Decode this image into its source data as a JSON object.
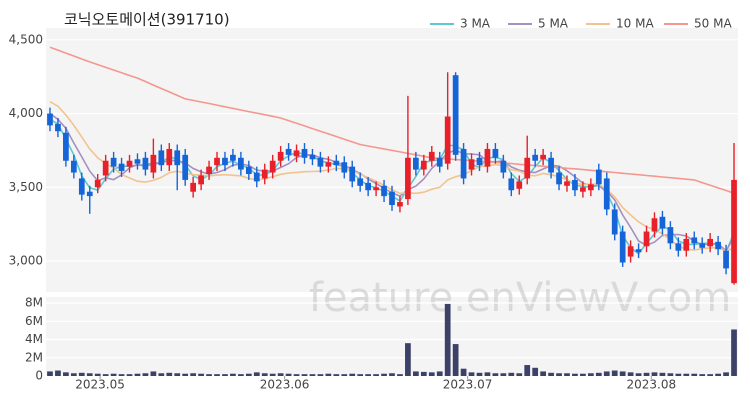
{
  "chart_data": [
    {
      "type": "candlestick",
      "title": "코닉오토메이션(391710)",
      "watermark": "feature.enViewV.com",
      "xlim": [
        -0.5,
        86.5
      ],
      "ylim": [
        2790,
        4580
      ],
      "yticks": [
        {
          "value": 3000,
          "label": "3,000"
        },
        {
          "value": 3500,
          "label": "3,500"
        },
        {
          "value": 4000,
          "label": "4,000"
        },
        {
          "value": 4500,
          "label": "4,500"
        }
      ],
      "grid": true,
      "legend": "top-right",
      "up_color": "#e8202a",
      "down_color": "#1565d8",
      "open": [
        4000,
        3930,
        3870,
        3680,
        3560,
        3470,
        3500,
        3580,
        3700,
        3660,
        3640,
        3690,
        3700,
        3600,
        3750,
        3650,
        3750,
        3720,
        3470,
        3520,
        3590,
        3650,
        3700,
        3720,
        3700,
        3640,
        3600,
        3560,
        3600,
        3680,
        3760,
        3710,
        3760,
        3720,
        3700,
        3640,
        3680,
        3670,
        3640,
        3560,
        3530,
        3480,
        3510,
        3470,
        3370,
        3420,
        3700,
        3620,
        3680,
        3700,
        3660,
        4260,
        3760,
        3620,
        3700,
        3640,
        3760,
        3680,
        3560,
        3490,
        3560,
        3720,
        3690,
        3700,
        3600,
        3510,
        3550,
        3470,
        3480,
        3620,
        3560,
        3350,
        3200,
        3030,
        3080,
        3100,
        3200,
        3300,
        3230,
        3120,
        3070,
        3160,
        3120,
        3100,
        3130,
        3070,
        2850
      ],
      "high": [
        4040,
        3970,
        3910,
        3720,
        3600,
        3510,
        3590,
        3720,
        3740,
        3700,
        3720,
        3730,
        3740,
        3830,
        3790,
        3800,
        3790,
        3760,
        3570,
        3620,
        3680,
        3740,
        3740,
        3760,
        3740,
        3680,
        3640,
        3660,
        3720,
        3780,
        3800,
        3790,
        3800,
        3760,
        3740,
        3710,
        3720,
        3710,
        3680,
        3600,
        3570,
        3540,
        3550,
        3510,
        3440,
        4120,
        3740,
        3720,
        3780,
        3740,
        4280,
        4280,
        3800,
        3730,
        3740,
        3800,
        3800,
        3720,
        3600,
        3580,
        3850,
        3760,
        3760,
        3740,
        3640,
        3580,
        3590,
        3540,
        3560,
        3660,
        3600,
        3390,
        3240,
        3140,
        3120,
        3240,
        3330,
        3340,
        3270,
        3160,
        3190,
        3200,
        3160,
        3190,
        3170,
        3110,
        3800
      ],
      "low": [
        3880,
        3840,
        3640,
        3560,
        3410,
        3320,
        3460,
        3540,
        3600,
        3570,
        3600,
        3620,
        3580,
        3560,
        3610,
        3610,
        3480,
        3510,
        3430,
        3480,
        3550,
        3610,
        3610,
        3640,
        3580,
        3550,
        3500,
        3520,
        3560,
        3640,
        3680,
        3670,
        3660,
        3650,
        3600,
        3600,
        3610,
        3560,
        3500,
        3470,
        3440,
        3440,
        3400,
        3340,
        3330,
        3380,
        3580,
        3580,
        3640,
        3600,
        3620,
        3680,
        3520,
        3580,
        3610,
        3600,
        3660,
        3560,
        3440,
        3450,
        3520,
        3640,
        3650,
        3560,
        3480,
        3470,
        3440,
        3430,
        3440,
        3480,
        3310,
        3140,
        2960,
        2990,
        3020,
        3060,
        3160,
        3180,
        3080,
        3030,
        3030,
        3080,
        3050,
        3060,
        3040,
        2910,
        2840
      ],
      "close": [
        3920,
        3880,
        3680,
        3600,
        3450,
        3440,
        3550,
        3680,
        3640,
        3610,
        3680,
        3660,
        3620,
        3720,
        3650,
        3760,
        3650,
        3550,
        3530,
        3580,
        3640,
        3700,
        3650,
        3680,
        3620,
        3590,
        3540,
        3620,
        3680,
        3740,
        3720,
        3750,
        3700,
        3690,
        3640,
        3670,
        3650,
        3600,
        3540,
        3510,
        3480,
        3500,
        3440,
        3380,
        3400,
        3700,
        3620,
        3680,
        3740,
        3640,
        3980,
        3720,
        3560,
        3690,
        3650,
        3760,
        3700,
        3600,
        3480,
        3540,
        3700,
        3680,
        3720,
        3600,
        3520,
        3540,
        3480,
        3500,
        3520,
        3520,
        3350,
        3180,
        2990,
        3100,
        3060,
        3200,
        3290,
        3220,
        3120,
        3070,
        3150,
        3120,
        3090,
        3150,
        3080,
        2950,
        3550
      ],
      "series": [
        {
          "name": "3 MA",
          "color": "#5ec8d0",
          "values": [
            3960,
            3930,
            3827,
            3720,
            3577,
            3497,
            3480,
            3557,
            3623,
            3643,
            3643,
            3650,
            3653,
            3667,
            3663,
            3710,
            3687,
            3653,
            3577,
            3553,
            3583,
            3640,
            3663,
            3677,
            3650,
            3630,
            3583,
            3583,
            3613,
            3680,
            3713,
            3737,
            3723,
            3713,
            3677,
            3667,
            3653,
            3640,
            3597,
            3550,
            3510,
            3497,
            3473,
            3440,
            3407,
            3493,
            3573,
            3667,
            3680,
            3687,
            3787,
            3780,
            3753,
            3657,
            3633,
            3700,
            3703,
            3687,
            3593,
            3540,
            3573,
            3640,
            3700,
            3667,
            3613,
            3553,
            3513,
            3507,
            3500,
            3513,
            3463,
            3350,
            3173,
            3090,
            3050,
            3120,
            3183,
            3237,
            3210,
            3137,
            3113,
            3113,
            3120,
            3120,
            3107,
            3060,
            3193
          ]
        },
        {
          "name": "5 MA",
          "color": "#a78fbf",
          "values": [
            4000,
            3960,
            3900,
            3800,
            3706,
            3610,
            3544,
            3564,
            3552,
            3584,
            3632,
            3654,
            3642,
            3658,
            3666,
            3682,
            3680,
            3666,
            3628,
            3604,
            3590,
            3600,
            3620,
            3650,
            3658,
            3648,
            3616,
            3610,
            3610,
            3634,
            3660,
            3702,
            3718,
            3720,
            3700,
            3690,
            3670,
            3650,
            3620,
            3594,
            3556,
            3526,
            3494,
            3462,
            3440,
            3484,
            3508,
            3556,
            3628,
            3676,
            3732,
            3752,
            3728,
            3726,
            3720,
            3676,
            3672,
            3680,
            3638,
            3616,
            3604,
            3600,
            3624,
            3648,
            3644,
            3612,
            3572,
            3528,
            3512,
            3512,
            3474,
            3414,
            3312,
            3228,
            3136,
            3106,
            3128,
            3174,
            3178,
            3180,
            3170,
            3136,
            3110,
            3116,
            3118,
            3068,
            3164
          ]
        },
        {
          "name": "10 MA",
          "color": "#f2c38e",
          "values": [
            4080,
            4050,
            3990,
            3920,
            3840,
            3760,
            3700,
            3660,
            3630,
            3587,
            3563,
            3541,
            3535,
            3547,
            3567,
            3599,
            3609,
            3596,
            3585,
            3582,
            3578,
            3582,
            3585,
            3581,
            3578,
            3561,
            3550,
            3557,
            3572,
            3588,
            3596,
            3601,
            3606,
            3607,
            3609,
            3617,
            3628,
            3626,
            3612,
            3589,
            3565,
            3540,
            3514,
            3483,
            3459,
            3462,
            3459,
            3467,
            3487,
            3500,
            3550,
            3572,
            3584,
            3615,
            3640,
            3646,
            3654,
            3646,
            3620,
            3610,
            3582,
            3578,
            3594,
            3585,
            3572,
            3550,
            3528,
            3518,
            3522,
            3520,
            3485,
            3435,
            3362,
            3312,
            3266,
            3232,
            3213,
            3185,
            3145,
            3100,
            3080,
            3074,
            3084,
            3089,
            3091,
            3066,
            3092
          ]
        },
        {
          "name": "50 MA",
          "color": "#f4978e",
          "values": [
            4450,
            4430,
            4410,
            4390,
            4370,
            4350,
            4332,
            4313,
            4295,
            4277,
            4258,
            4240,
            4217,
            4193,
            4170,
            4147,
            4123,
            4100,
            4089,
            4078,
            4068,
            4057,
            4046,
            4035,
            4024,
            4013,
            4003,
            3992,
            3981,
            3970,
            3952,
            3934,
            3916,
            3898,
            3880,
            3862,
            3844,
            3826,
            3808,
            3790,
            3780,
            3770,
            3760,
            3750,
            3740,
            3730,
            3720,
            3710,
            3700,
            3696,
            3692,
            3688,
            3684,
            3681,
            3677,
            3673,
            3669,
            3665,
            3661,
            3656,
            3652,
            3647,
            3643,
            3638,
            3634,
            3629,
            3625,
            3620,
            3615,
            3610,
            3605,
            3600,
            3595,
            3590,
            3585,
            3580,
            3575,
            3570,
            3565,
            3560,
            3555,
            3550,
            3532,
            3514,
            3496,
            3478,
            3460
          ]
        }
      ]
    },
    {
      "type": "bar",
      "color": "#3c4168",
      "xlim": [
        -0.5,
        86.5
      ],
      "ylim": [
        0,
        8660000
      ],
      "yticks": [
        0,
        {
          "value": 2000000,
          "label": "2M"
        },
        {
          "value": 4000000,
          "label": "4M"
        },
        {
          "value": 6000000,
          "label": "6M"
        },
        {
          "value": 8000000,
          "label": "8M"
        }
      ],
      "xticks": [
        {
          "value": 6.3,
          "label": "2023.05"
        },
        {
          "value": 29.5,
          "label": "2023.06"
        },
        {
          "value": 52.5,
          "label": "2023.07"
        },
        {
          "value": 75.6,
          "label": "2023.08"
        }
      ],
      "values": [
        500000,
        600000,
        400000,
        300000,
        350000,
        300000,
        250000,
        200000,
        250000,
        200000,
        200000,
        250000,
        300000,
        500000,
        300000,
        350000,
        300000,
        250000,
        300000,
        250000,
        200000,
        200000,
        200000,
        250000,
        200000,
        250000,
        400000,
        300000,
        250000,
        300000,
        250000,
        200000,
        200000,
        200000,
        200000,
        250000,
        200000,
        200000,
        250000,
        200000,
        200000,
        200000,
        250000,
        300000,
        200000,
        3600000,
        500000,
        450000,
        400000,
        500000,
        7900000,
        3500000,
        800000,
        400000,
        350000,
        400000,
        300000,
        300000,
        350000,
        300000,
        1200000,
        900000,
        500000,
        350000,
        300000,
        300000,
        250000,
        250000,
        300000,
        350000,
        500000,
        600000,
        500000,
        400000,
        300000,
        350000,
        400000,
        350000,
        300000,
        250000,
        250000,
        250000,
        200000,
        200000,
        250000,
        400000,
        5100000
      ]
    }
  ]
}
